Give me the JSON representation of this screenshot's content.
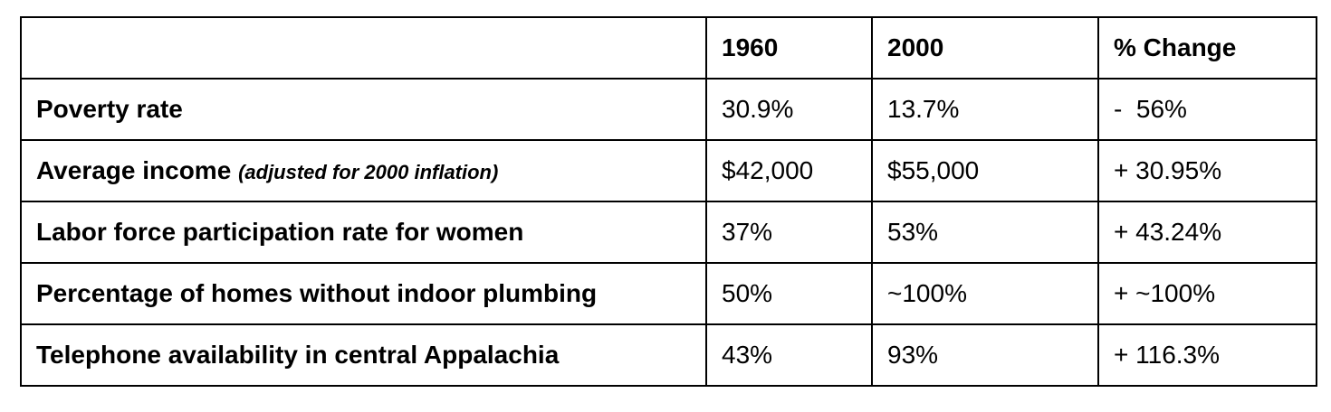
{
  "table": {
    "columns": [
      "1960",
      "2000",
      "% Change"
    ],
    "rows": [
      {
        "label": "Poverty rate",
        "cells": [
          "30.9%",
          "13.7%",
          "-  56%"
        ]
      },
      {
        "label": "Average income",
        "note": "(adjusted for 2000 inflation)",
        "cells": [
          "$42,000",
          "$55,000",
          "+ 30.95%"
        ]
      },
      {
        "label": "Labor force participation rate for women",
        "cells": [
          "37%",
          "53%",
          "+ 43.24%"
        ]
      },
      {
        "label": "Percentage of homes without indoor plumbing",
        "cells": [
          "50%",
          "~100%",
          "+ ~100%"
        ]
      },
      {
        "label": "Telephone availability in central Appalachia",
        "cells": [
          "43%",
          "93%",
          "+ 116.3%"
        ]
      }
    ]
  }
}
